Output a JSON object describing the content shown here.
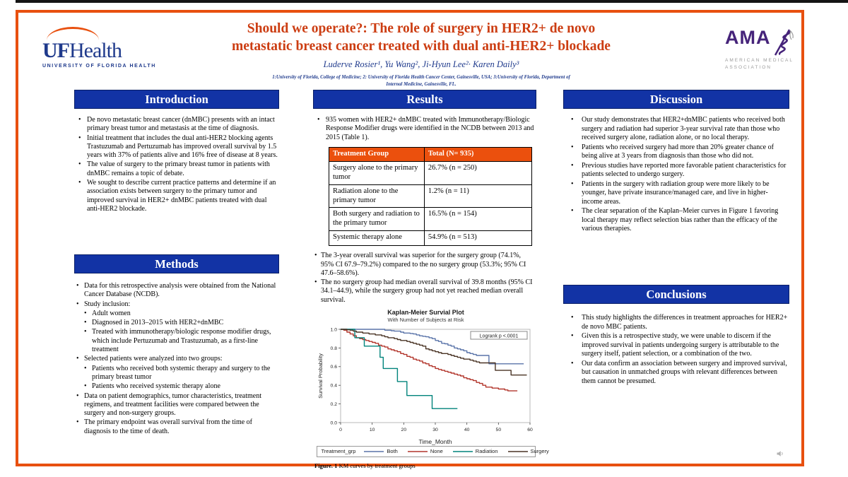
{
  "colors": {
    "orange": "#E8500F",
    "header-blue": "#1233A5",
    "title-red": "#CC3D12",
    "navy": "#1F3A8C",
    "purple": "#46247A",
    "gray-ama": "#9B9B9B",
    "table-orange": "#EB500D"
  },
  "header": {
    "title_line1": "Should we operate?: The role of surgery in HER2+ de novo",
    "title_line2": "metastatic breast cancer treated with dual anti-HER2+ blockade",
    "authors": "Luderve Rosier¹, Yu Wang², Ji-Hyun Lee²· Karen Daily³",
    "affiliations_line1": "1:University of Florida, College of Medicine; 2: University of Florida Health Cancer Center, Gainesville, USA; 3:University of Florida, Department of",
    "affiliations_line2": "Internal Medicine, Gainesville, FL.",
    "ufhealth": {
      "uf": "UF",
      "health": "Health",
      "tagline": "UNIVERSITY OF FLORIDA HEALTH"
    },
    "ama": {
      "abbr": "AMA",
      "line1": "AMERICAN MEDICAL",
      "line2": "ASSOCIATION"
    }
  },
  "icons": {
    "ama_serpent": "rod-of-asclepius",
    "audio": "speaker"
  },
  "introduction": {
    "title": "Introduction",
    "bullets": [
      "De novo metastatic breast cancer (dnMBC) presents with an intact primary breast tumor and metastasis at the time of diagnosis.",
      "Initial treatment that includes the dual anti-HER2 blocking agents Trastuzumab and Pertuzumab has improved overall survival by 1.5 years with 37% of patients alive and 16% free of disease at 8 years.",
      "The value of surgery to the primary breast tumor in patients with dnMBC remains a topic of debate.",
      "We sought to describe current practice patterns and determine if an association exists between surgery to the primary tumor and improved survival in HER2+ dnMBC patients treated with dual anti-HER2 blockade."
    ]
  },
  "methods": {
    "title": "Methods",
    "bullets": [
      {
        "level": 1,
        "text": "Data for this retrospective analysis were obtained from the National Cancer Database (NCDB)."
      },
      {
        "level": 1,
        "text": "Study inclusion:"
      },
      {
        "level": 2,
        "text": "Adult women"
      },
      {
        "level": 2,
        "text": "Diagnosed in 2013–2015 with HER2+dnMBC"
      },
      {
        "level": 2,
        "text": "Treated with immunotherapy/biologic response modifier drugs, which include Pertuzumab and Trastuzumab, as a first-line treatment"
      },
      {
        "level": 1,
        "text": "Selected patients were analyzed into two groups:"
      },
      {
        "level": 2,
        "text": "Patients who received both systemic therapy and surgery to the primary breast tumor"
      },
      {
        "level": 2,
        "text": "Patients who received systemic therapy alone"
      },
      {
        "level": 1,
        "text": "Data on patient demographics, tumor characteristics, treatment regimens, and treatment facilities were compared between the surgery and non-surgery groups."
      },
      {
        "level": 1,
        "text": "The primary endpoint was overall survival from the time of diagnosis to the time of death."
      }
    ]
  },
  "results": {
    "title": "Results",
    "bullets1": [
      "935 women with HER2+ dnMBC treated with Immunotherapy/Biologic Response Modifier drugs were identified in the NCDB between 2013 and 2015 (Table 1)."
    ],
    "table": {
      "headers": [
        "Treatment Group",
        "Total (N= 935)"
      ],
      "rows": [
        [
          "Surgery alone to the primary tumor",
          "26.7% (n = 250)"
        ],
        [
          "Radiation alone to the primary tumor",
          "1.2% (n = 11)"
        ],
        [
          "Both surgery and radiation to the primary tumor",
          "16.5% (n = 154)"
        ],
        [
          "Systemic therapy alone",
          "54.9% (n = 513)"
        ]
      ]
    },
    "bullets2": [
      "The 3-year overall survival was superior for the surgery group (74.1%, 95% CI 67.9–79.2%) compared to the no surgery group (53.3%; 95% CI 47.6–58.6%).",
      "The no surgery group had median overall survival of 39.8 months (95% CI 34.1–44.9), while the surgery group had not yet reached median overall survival."
    ],
    "figure_caption_bold": "Figure. 1",
    "figure_caption_rest": " KM curves by treatment groups"
  },
  "discussion": {
    "title": "Discussion",
    "bullets": [
      "Our study demonstrates that HER2+dnMBC patients who received both surgery and radiation had superior 3-year survival rate than those who received surgery alone, radiation alone, or no local therapy.",
      "Patients who received surgery had more than 20% greater chance of being alive at 3 years from diagnosis than those who did not.",
      "Previous studies have reported more favorable patient characteristics for patients selected to undergo surgery.",
      "Patients in the surgery with radiation group were more likely to be younger, have private insurance/managed care, and live in higher-income areas.",
      "The clear separation of the Kaplan–Meier curves in Figure 1 favoring local therapy may reflect selection bias rather than the efficacy of the various therapies."
    ]
  },
  "conclusions": {
    "title": "Conclusions",
    "bullets": [
      "This study highlights the differences in treatment approaches for HER2+ de novo MBC patients.",
      "Given this is a retrospective study, we were unable to discern if the improved survival in patients undergoing surgery is attributable to the surgery itself, patient selection, or a combination of the two.",
      "Our data confirm an association between surgery and improved survival, but causation in unmatched groups with relevant differences between them cannot be presumed."
    ]
  },
  "chart_data": {
    "type": "line",
    "title": "Kaplan-Meier Survial Plot",
    "subtitle": "With Number of Subjects at Risk",
    "xlabel": "Time_Month",
    "ylabel": "Survival Probability",
    "xlim": [
      0,
      60
    ],
    "ylim": [
      0.0,
      1.0
    ],
    "xticks": [
      0,
      10,
      20,
      30,
      40,
      50,
      60
    ],
    "yticks": [
      "0.0",
      "0.2",
      "0.4",
      "0.6",
      "0.8",
      "1.0"
    ],
    "grid": false,
    "annotation": "Logrank p <.0001",
    "legend_title": "Treatment_grp",
    "legend_position": "bottom",
    "step": true,
    "series": [
      {
        "name": "Both",
        "color": "#5A74A9",
        "points": [
          [
            0,
            1.0
          ],
          [
            12,
            1.0
          ],
          [
            14,
            0.99
          ],
          [
            16,
            0.985
          ],
          [
            17,
            0.98
          ],
          [
            19,
            0.97
          ],
          [
            20,
            0.96
          ],
          [
            22,
            0.955
          ],
          [
            23,
            0.95
          ],
          [
            24,
            0.94
          ],
          [
            25,
            0.93
          ],
          [
            26,
            0.925
          ],
          [
            27,
            0.92
          ],
          [
            28,
            0.91
          ],
          [
            29,
            0.9
          ],
          [
            30,
            0.88
          ],
          [
            31,
            0.87
          ],
          [
            32,
            0.85
          ],
          [
            33,
            0.845
          ],
          [
            34,
            0.83
          ],
          [
            35,
            0.82
          ],
          [
            36,
            0.8
          ],
          [
            37,
            0.79
          ],
          [
            38,
            0.78
          ],
          [
            39,
            0.77
          ],
          [
            40,
            0.75
          ],
          [
            41,
            0.74
          ],
          [
            42,
            0.73
          ],
          [
            43,
            0.72
          ],
          [
            46,
            0.72
          ],
          [
            47,
            0.63
          ],
          [
            58,
            0.63
          ]
        ]
      },
      {
        "name": "None",
        "color": "#B2352B",
        "points": [
          [
            0,
            1.0
          ],
          [
            1,
            0.99
          ],
          [
            2,
            0.97
          ],
          [
            3,
            0.95
          ],
          [
            4,
            0.93
          ],
          [
            5,
            0.91
          ],
          [
            6,
            0.9
          ],
          [
            7,
            0.89
          ],
          [
            8,
            0.88
          ],
          [
            9,
            0.87
          ],
          [
            10,
            0.86
          ],
          [
            11,
            0.85
          ],
          [
            12,
            0.83
          ],
          [
            13,
            0.82
          ],
          [
            14,
            0.81
          ],
          [
            15,
            0.79
          ],
          [
            16,
            0.78
          ],
          [
            17,
            0.77
          ],
          [
            18,
            0.76
          ],
          [
            19,
            0.74
          ],
          [
            20,
            0.73
          ],
          [
            21,
            0.71
          ],
          [
            22,
            0.7
          ],
          [
            23,
            0.68
          ],
          [
            24,
            0.67
          ],
          [
            25,
            0.66
          ],
          [
            26,
            0.64
          ],
          [
            27,
            0.63
          ],
          [
            28,
            0.61
          ],
          [
            29,
            0.6
          ],
          [
            30,
            0.58
          ],
          [
            31,
            0.57
          ],
          [
            32,
            0.56
          ],
          [
            33,
            0.55
          ],
          [
            34,
            0.54
          ],
          [
            35,
            0.53
          ],
          [
            36,
            0.52
          ],
          [
            37,
            0.51
          ],
          [
            38,
            0.5
          ],
          [
            39,
            0.48
          ],
          [
            40,
            0.47
          ],
          [
            41,
            0.46
          ],
          [
            42,
            0.45
          ],
          [
            43,
            0.43
          ],
          [
            44,
            0.42
          ],
          [
            45,
            0.4
          ],
          [
            46,
            0.38
          ],
          [
            48,
            0.37
          ],
          [
            50,
            0.36
          ],
          [
            52,
            0.35
          ],
          [
            53,
            0.34
          ],
          [
            56,
            0.34
          ]
        ]
      },
      {
        "name": "Radiation",
        "color": "#00837B",
        "points": [
          [
            0,
            1.0
          ],
          [
            4.5,
            0.91
          ],
          [
            7.5,
            0.82
          ],
          [
            12.5,
            0.7
          ],
          [
            13.5,
            0.58
          ],
          [
            18,
            0.44
          ],
          [
            21,
            0.29
          ],
          [
            29,
            0.15
          ],
          [
            37,
            0.15
          ]
        ]
      },
      {
        "name": "Surgery",
        "color": "#4A3425",
        "points": [
          [
            0,
            1.0
          ],
          [
            2,
            0.995
          ],
          [
            3,
            0.99
          ],
          [
            4,
            0.98
          ],
          [
            5,
            0.97
          ],
          [
            7,
            0.96
          ],
          [
            9,
            0.95
          ],
          [
            11,
            0.94
          ],
          [
            13,
            0.93
          ],
          [
            14,
            0.92
          ],
          [
            15,
            0.91
          ],
          [
            17,
            0.9
          ],
          [
            18,
            0.89
          ],
          [
            19,
            0.88
          ],
          [
            21,
            0.87
          ],
          [
            22,
            0.86
          ],
          [
            23,
            0.85
          ],
          [
            24,
            0.84
          ],
          [
            25,
            0.83
          ],
          [
            26,
            0.82
          ],
          [
            27,
            0.79
          ],
          [
            28,
            0.78
          ],
          [
            29,
            0.77
          ],
          [
            30,
            0.76
          ],
          [
            31,
            0.75
          ],
          [
            32,
            0.74
          ],
          [
            34,
            0.73
          ],
          [
            35,
            0.72
          ],
          [
            36,
            0.71
          ],
          [
            37,
            0.7
          ],
          [
            38,
            0.69
          ],
          [
            39,
            0.68
          ],
          [
            41,
            0.67
          ],
          [
            42,
            0.66
          ],
          [
            43,
            0.65
          ],
          [
            44,
            0.64
          ],
          [
            48,
            0.64
          ],
          [
            49,
            0.56
          ],
          [
            53,
            0.56
          ],
          [
            54,
            0.51
          ],
          [
            59,
            0.51
          ]
        ]
      }
    ]
  }
}
